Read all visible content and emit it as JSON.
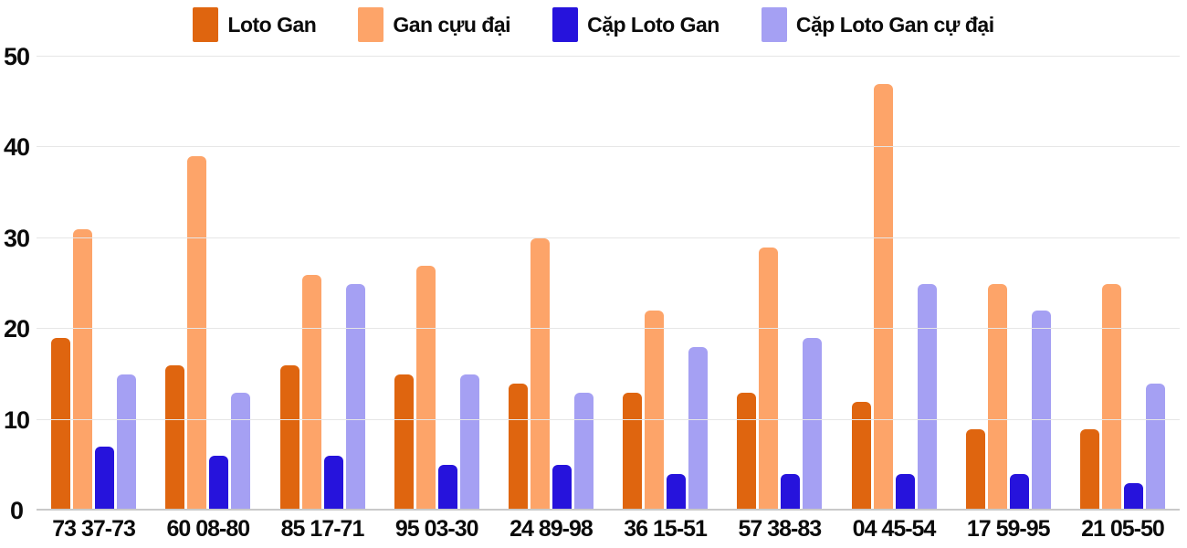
{
  "chart_data": {
    "type": "bar",
    "title": "",
    "xlabel": "",
    "ylabel": "",
    "categories": [
      "73 37-73",
      "60 08-80",
      "85 17-71",
      "95 03-30",
      "24 89-98",
      "36 15-51",
      "57 38-83",
      "04 45-54",
      "17 59-95",
      "21 05-50"
    ],
    "series": [
      {
        "name": "Loto Gan",
        "color": "#df650f",
        "values": [
          19,
          16,
          16,
          15,
          14,
          13,
          13,
          12,
          9,
          9
        ]
      },
      {
        "name": "Gan cựu đại",
        "color": "#fda469",
        "values": [
          31,
          39,
          26,
          27,
          30,
          22,
          29,
          47,
          25,
          25
        ]
      },
      {
        "name": "Cặp Loto Gan",
        "color": "#2613dc",
        "values": [
          7,
          6,
          6,
          5,
          5,
          4,
          4,
          4,
          4,
          3
        ]
      },
      {
        "name": "Cặp Loto Gan cự đại",
        "color": "#a5a0f3",
        "values": [
          15,
          13,
          25,
          15,
          13,
          18,
          19,
          25,
          22,
          14
        ]
      }
    ],
    "yticks": [
      0,
      10,
      20,
      30,
      40,
      50
    ],
    "ylim": [
      0,
      50
    ],
    "grid": true,
    "legend_position": "top",
    "colors": {
      "background": "#ffffff",
      "grid_line": "#e6e6e6",
      "axis_line": "#c9c9c9",
      "text": "#0b0b0b"
    }
  }
}
